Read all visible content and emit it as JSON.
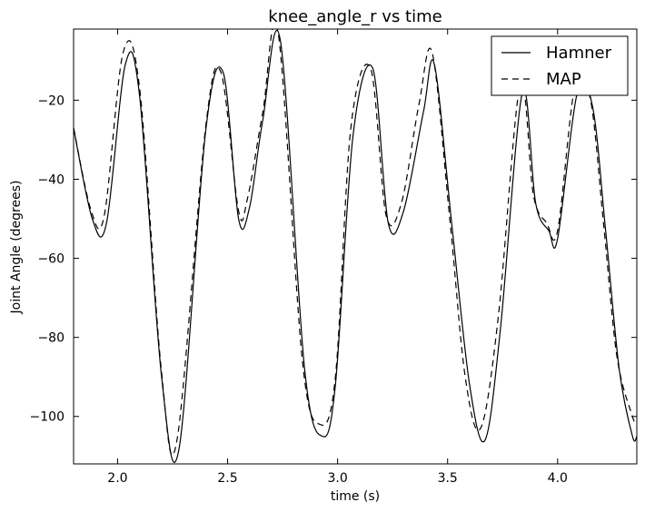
{
  "chart_data": {
    "type": "line",
    "title": "knee_angle_r vs time",
    "xlabel": "time (s)",
    "ylabel": "Joint Angle (degrees)",
    "xlim": [
      1.8,
      4.36
    ],
    "ylim": [
      -112,
      -2
    ],
    "xticks": [
      2.0,
      2.5,
      3.0,
      3.5,
      4.0
    ],
    "xtick_labels": [
      "2.0",
      "2.5",
      "3.0",
      "3.5",
      "4.0"
    ],
    "yticks": [
      -20,
      -40,
      -60,
      -80,
      -100
    ],
    "ytick_labels": [
      "−20",
      "−40",
      "−60",
      "−80",
      "−100"
    ],
    "grid": false,
    "legend_position": "top-right",
    "series": [
      {
        "name": "Hamner",
        "style": "solid",
        "color": "#000000",
        "x": [
          1.8,
          1.885,
          1.95,
          2.035,
          2.1,
          2.2,
          2.28,
          2.4,
          2.48,
          2.55,
          2.6,
          2.66,
          2.74,
          2.85,
          2.93,
          2.99,
          3.07,
          3.16,
          3.23,
          3.3,
          3.39,
          3.44,
          3.52,
          3.6,
          3.67,
          3.74,
          3.84,
          3.9,
          3.96,
          4.0,
          4.09,
          4.16,
          4.22,
          4.28,
          4.34,
          4.36
        ],
        "y": [
          -27,
          -50,
          -51,
          -11,
          -19,
          -90,
          -108,
          -28,
          -13,
          -50,
          -47,
          -25,
          -5,
          -88,
          -105,
          -92,
          -29,
          -12,
          -51,
          -48,
          -23,
          -11,
          -52,
          -92,
          -106,
          -78,
          -18,
          -46,
          -53,
          -55,
          -18,
          -22,
          -54,
          -88,
          -105,
          -105
        ]
      },
      {
        "name": "MAP",
        "style": "dashed",
        "color": "#000000",
        "x": [
          1.8,
          1.88,
          1.94,
          2.025,
          2.1,
          2.2,
          2.27,
          2.4,
          2.47,
          2.55,
          2.59,
          2.66,
          2.73,
          2.84,
          2.92,
          2.99,
          3.06,
          3.15,
          3.22,
          3.29,
          3.37,
          3.43,
          3.51,
          3.58,
          3.65,
          3.73,
          3.83,
          3.89,
          3.95,
          4.0,
          4.08,
          4.15,
          4.21,
          4.27,
          4.34,
          4.36
        ],
        "y": [
          -27,
          -48,
          -49,
          -8,
          -17,
          -89,
          -106,
          -27,
          -13,
          -48,
          -45,
          -23,
          -3,
          -86,
          -102,
          -90,
          -27,
          -12,
          -49,
          -46,
          -21,
          -8,
          -50,
          -90,
          -103,
          -75,
          -16,
          -44,
          -51,
          -53,
          -16,
          -20,
          -52,
          -85,
          -100,
          -102
        ]
      }
    ]
  }
}
